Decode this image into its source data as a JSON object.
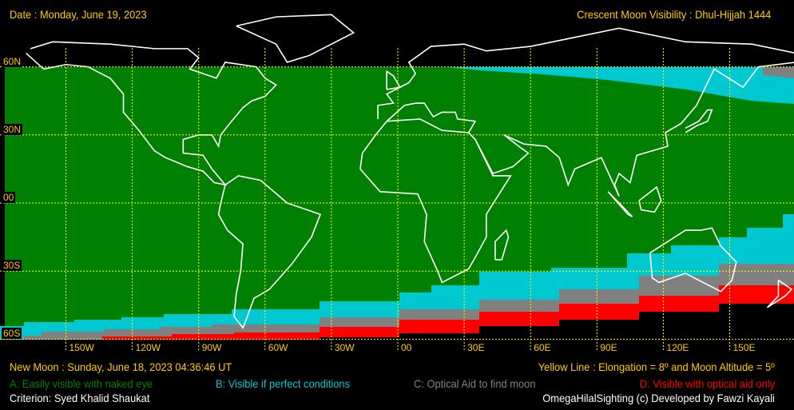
{
  "header": {
    "date": "Date : Monday, June 19, 2023",
    "title": "Crescent Moon Visibility : Dhul-Hijjah  1444"
  },
  "axes": {
    "lat_labels": [
      "60N",
      "30N",
      "00",
      "30S",
      "60S"
    ],
    "lat_values": [
      60,
      30,
      0,
      -30,
      -60
    ],
    "lon_labels": [
      "150W",
      "120W",
      "90W",
      "60W",
      "30W",
      "00",
      "30E",
      "60E",
      "90E",
      "120E",
      "150E"
    ],
    "lon_values": [
      -150,
      -120,
      -90,
      -60,
      -30,
      0,
      30,
      60,
      90,
      120,
      150
    ]
  },
  "footer": {
    "new_moon": "New Moon : Sunday, June 18, 2023  04:36:46  UT",
    "yellow_line": "Yellow Line : Elongation = 8º  and Moon Altitude = 5º",
    "criterion": "Criterion: Syed Khalid Shaukat",
    "credit": "OmegaHilalSighting  (c)  Developed by Fawzi Kayali"
  },
  "legend": [
    {
      "key": "A",
      "label": "A: Easily visible with naked eye",
      "color": "#008000"
    },
    {
      "key": "B",
      "label": "B: Visible if perfect conditions",
      "color": "#00c8d0"
    },
    {
      "key": "C",
      "label": "C: Optical Aid to find moon",
      "color": "#808080"
    },
    {
      "key": "D",
      "label": "D: Visible with optical aid only",
      "color": "#ff0000"
    }
  ],
  "colors": {
    "text": "#ffcc00",
    "grid": "#ffff00",
    "coast": "#ffffff",
    "border": "#555555"
  }
}
